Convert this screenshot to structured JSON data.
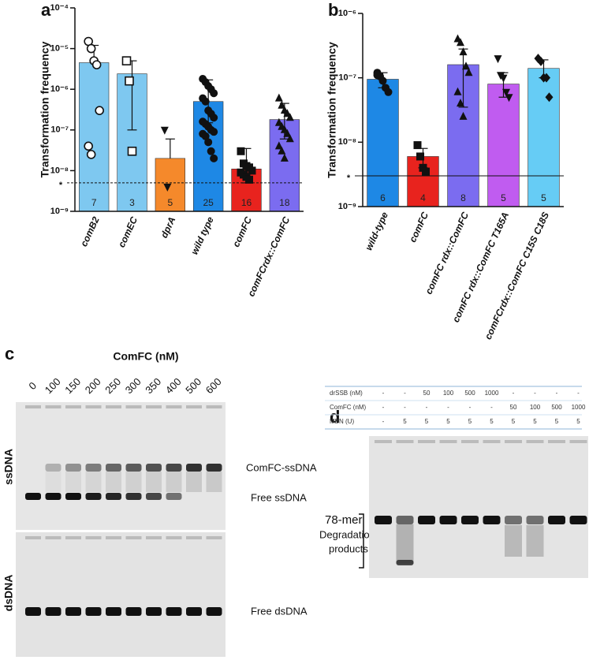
{
  "chart_data": [
    {
      "type": "bar",
      "panel_label": "a",
      "y_label": "Transformation frequency",
      "log_y": true,
      "categories": [
        "comB2",
        "comEC",
        "dprA",
        "wild type",
        "comFC",
        "comFCrdx::ComFC"
      ],
      "values": [
        4.5e-06,
        2.4e-06,
        2e-08,
        5e-07,
        1.1e-08,
        1.8e-07
      ],
      "error_low": [
        null,
        1e-07,
        null,
        1.5e-07,
        5e-09,
        6e-08
      ],
      "error_high": [
        1.2e-05,
        5e-06,
        6e-08,
        1.7e-06,
        3.5e-08,
        4.5e-07
      ],
      "n": [
        7,
        3,
        5,
        25,
        16,
        18
      ],
      "colors": [
        "#7ec8f0",
        "#7ec8f0",
        "#f5892b",
        "#1e88e5",
        "#e8231e",
        "#7b6cf0"
      ],
      "markers": [
        "circle",
        "square",
        "triangle-down",
        "circle",
        "square",
        "triangle-up"
      ],
      "marker_fill": [
        "open",
        "open",
        "filled",
        "filled",
        "filled",
        "filled"
      ],
      "points": [
        [
          1.5e-05,
          1e-05,
          5e-06,
          4e-06,
          3e-07,
          4e-08,
          2.5e-08
        ],
        [
          5e-06,
          1.6e-06,
          3e-08
        ],
        [
          1e-07,
          4e-09
        ],
        [
          1.8e-06,
          1.5e-06,
          1.2e-06,
          1e-06,
          8e-07,
          6e-07,
          5e-07,
          3e-07,
          2.5e-07,
          2e-07,
          1.6e-07,
          1.4e-07,
          1.2e-07,
          1e-07,
          9e-08,
          8e-08,
          7e-08,
          5e-08,
          3e-08,
          2e-08
        ],
        [
          3e-08,
          1.5e-08,
          1.3e-08,
          1.2e-08,
          1e-08,
          9e-09,
          8e-09,
          7e-09,
          6e-09
        ],
        [
          6e-07,
          4e-07,
          3e-07,
          2.5e-07,
          2e-07,
          1.5e-07,
          1.2e-07,
          1e-07,
          8e-08,
          6e-08,
          4e-08,
          3e-08,
          2e-08
        ]
      ],
      "ylim": [
        1e-09,
        0.0001
      ],
      "yticks": [
        {
          "value": 1e-09,
          "label": "10⁻⁹"
        },
        {
          "value": 1e-08,
          "label": "10⁻⁸"
        },
        {
          "value": 1e-07,
          "label": "10⁻⁷"
        },
        {
          "value": 1e-06,
          "label": "10⁻⁶"
        },
        {
          "value": 1e-05,
          "label": "10⁻⁵"
        },
        {
          "value": 0.0001,
          "label": "10⁻⁴"
        }
      ],
      "threshold": 5e-09,
      "threshold_label": "*",
      "threshold_style": "dashed"
    },
    {
      "type": "bar",
      "panel_label": "b",
      "y_label": "Transformation frequency",
      "log_y": true,
      "categories": [
        "wild-type",
        "comFC",
        "comFC rdx::ComFC",
        "comFC rdx::ComFC T165A",
        "comFCrdx::ComFC C15S C18S"
      ],
      "values": [
        9.5e-08,
        6e-09,
        1.6e-07,
        8e-08,
        1.4e-07
      ],
      "error_low": [
        7e-08,
        4e-09,
        3.5e-08,
        5e-08,
        1e-07
      ],
      "error_high": [
        1.2e-07,
        8e-09,
        2.8e-07,
        1.2e-07,
        1.9e-07
      ],
      "n": [
        6,
        4,
        8,
        5,
        5
      ],
      "colors": [
        "#1e88e5",
        "#e8231e",
        "#7b6cf0",
        "#c05cf0",
        "#66ccf5"
      ],
      "markers": [
        "circle",
        "square",
        "triangle-up",
        "triangle-down",
        "diamond"
      ],
      "marker_fill": [
        "filled",
        "filled",
        "filled",
        "filled",
        "filled"
      ],
      "points": [
        [
          1.2e-07,
          1.05e-07,
          9e-08,
          7e-08,
          6e-08,
          1.1e-07
        ],
        [
          9e-09,
          6e-09,
          4e-09,
          3.5e-09
        ],
        [
          4e-07,
          3.5e-07,
          2.5e-07,
          1.5e-07,
          1.2e-07,
          6e-08,
          4e-08,
          2.5e-08
        ],
        [
          2e-07,
          1.1e-07,
          1e-07,
          6e-08,
          5e-08
        ],
        [
          2e-07,
          1.8e-07,
          1e-07,
          1e-07,
          5e-08
        ]
      ],
      "ylim": [
        1e-09,
        1e-06
      ],
      "yticks": [
        {
          "value": 1e-09,
          "label": "10⁻⁹"
        },
        {
          "value": 1e-08,
          "label": "10⁻⁸"
        },
        {
          "value": 1e-07,
          "label": "10⁻⁷"
        },
        {
          "value": 1e-06,
          "label": "10⁻⁶"
        }
      ],
      "threshold": 3e-09,
      "threshold_label": "*",
      "threshold_style": "solid"
    }
  ],
  "panel_c": {
    "label": "c",
    "title": "ComFC (nM)",
    "lanes": [
      "0",
      "100",
      "150",
      "200",
      "250",
      "300",
      "350",
      "400",
      "500",
      "600"
    ],
    "row_labels": [
      "ssDNA",
      "dsDNA"
    ],
    "band_labels": [
      "ComFC-ssDNA",
      "Free ssDNA",
      "Free dsDNA"
    ]
  },
  "panel_d": {
    "label": "d",
    "table": {
      "rows": [
        {
          "label": "drSSB (nM)",
          "cells": [
            "-",
            "-",
            "50",
            "100",
            "500",
            "1000",
            "-",
            "-",
            "-",
            "-"
          ]
        },
        {
          "label": "ComFC (nM)",
          "cells": [
            "-",
            "-",
            "-",
            "-",
            "-",
            "-",
            "50",
            "100",
            "500",
            "1000"
          ]
        },
        {
          "label": "MBN (U)",
          "cells": [
            "-",
            "5",
            "5",
            "5",
            "5",
            "5",
            "5",
            "5",
            "5",
            "5"
          ]
        }
      ]
    },
    "band_label": "78-mer",
    "degradation_label": [
      "Degradation",
      "products"
    ]
  }
}
